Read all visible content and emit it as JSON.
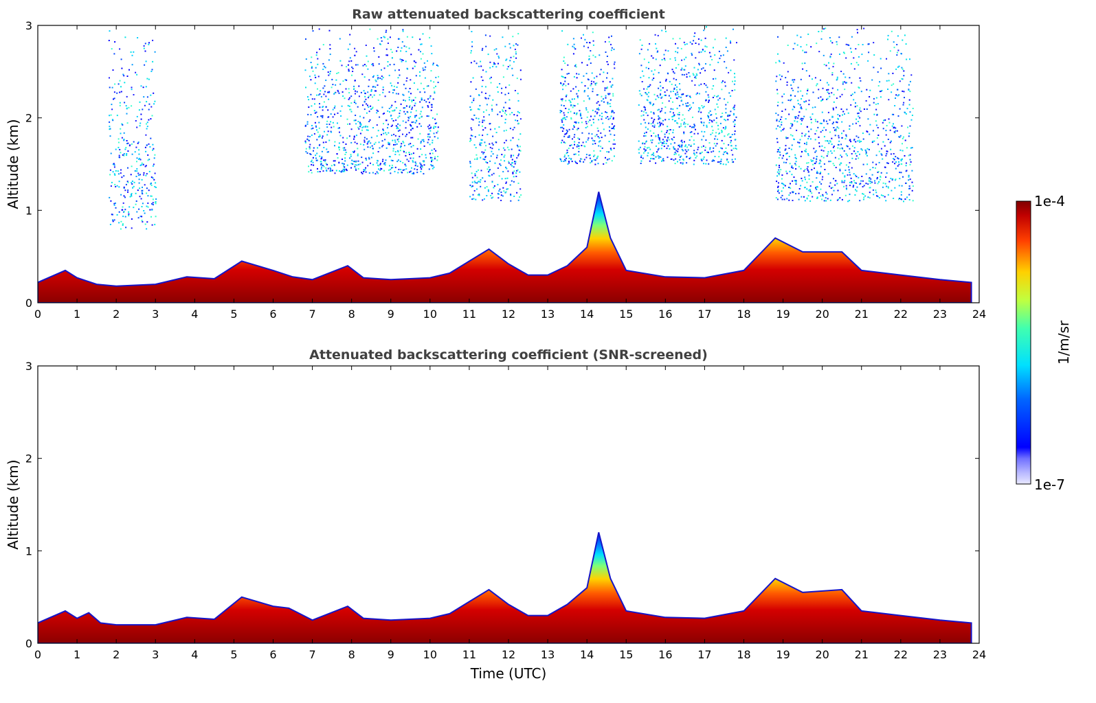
{
  "chart_data": [
    {
      "type": "heatmap",
      "title": "Raw attenuated backscattering coefficient",
      "xlabel": "",
      "ylabel": "Altitude (km)",
      "xlim": [
        0,
        24
      ],
      "ylim": [
        0,
        3
      ],
      "x_ticks": [
        "0",
        "1",
        "2",
        "3",
        "4",
        "5",
        "6",
        "7",
        "8",
        "9",
        "10",
        "11",
        "12",
        "13",
        "14",
        "15",
        "16",
        "17",
        "18",
        "19",
        "20",
        "21",
        "22",
        "23",
        "24"
      ],
      "y_ticks": [
        "0",
        "1",
        "2",
        "3"
      ],
      "data_end_x": 23.8,
      "boundary_layer_top_km": [
        [
          0,
          0.22
        ],
        [
          0.7,
          0.35
        ],
        [
          1,
          0.27
        ],
        [
          1.5,
          0.2
        ],
        [
          2,
          0.18
        ],
        [
          3,
          0.2
        ],
        [
          3.8,
          0.28
        ],
        [
          4.5,
          0.26
        ],
        [
          5.2,
          0.45
        ],
        [
          6,
          0.35
        ],
        [
          6.5,
          0.28
        ],
        [
          7,
          0.25
        ],
        [
          7.9,
          0.4
        ],
        [
          8.3,
          0.27
        ],
        [
          9,
          0.25
        ],
        [
          10,
          0.27
        ],
        [
          10.5,
          0.32
        ],
        [
          11,
          0.45
        ],
        [
          11.5,
          0.58
        ],
        [
          12,
          0.42
        ],
        [
          12.5,
          0.3
        ],
        [
          13,
          0.3
        ],
        [
          13.5,
          0.4
        ],
        [
          14,
          0.6
        ],
        [
          14.3,
          1.2
        ],
        [
          14.6,
          0.7
        ],
        [
          15,
          0.35
        ],
        [
          16,
          0.28
        ],
        [
          17,
          0.27
        ],
        [
          18,
          0.35
        ],
        [
          18.8,
          0.7
        ],
        [
          19.5,
          0.55
        ],
        [
          20.5,
          0.55
        ],
        [
          21,
          0.35
        ],
        [
          22,
          0.3
        ],
        [
          23,
          0.25
        ],
        [
          23.8,
          0.22
        ]
      ],
      "upper_echo_regions": [
        {
          "x_range": [
            1.8,
            3.0
          ],
          "y_range": [
            0.8,
            3.0
          ]
        },
        {
          "x_range": [
            6.8,
            10.2
          ],
          "y_range": [
            1.4,
            3.0
          ]
        },
        {
          "x_range": [
            11.0,
            12.3
          ],
          "y_range": [
            1.1,
            3.0
          ]
        },
        {
          "x_range": [
            13.3,
            14.7
          ],
          "y_range": [
            1.5,
            3.0
          ]
        },
        {
          "x_range": [
            15.3,
            17.8
          ],
          "y_range": [
            1.5,
            3.0
          ]
        },
        {
          "x_range": [
            18.8,
            22.3
          ],
          "y_range": [
            1.1,
            3.0
          ]
        }
      ],
      "colorbar": {
        "min_label": "1e-7",
        "max_label": "1e-4",
        "unit_label": "1/m/sr",
        "colormap": "jet",
        "scale": "log"
      }
    },
    {
      "type": "heatmap",
      "title": "Attenuated backscattering coefficient (SNR-screened)",
      "xlabel": "Time (UTC)",
      "ylabel": "Altitude (km)",
      "xlim": [
        0,
        24
      ],
      "ylim": [
        0,
        3
      ],
      "x_ticks": [
        "0",
        "1",
        "2",
        "3",
        "4",
        "5",
        "6",
        "7",
        "8",
        "9",
        "10",
        "11",
        "12",
        "13",
        "14",
        "15",
        "16",
        "17",
        "18",
        "19",
        "20",
        "21",
        "22",
        "23",
        "24"
      ],
      "y_ticks": [
        "0",
        "1",
        "2",
        "3"
      ],
      "data_end_x": 23.8,
      "boundary_layer_top_km": [
        [
          0,
          0.22
        ],
        [
          0.7,
          0.35
        ],
        [
          1,
          0.27
        ],
        [
          1.3,
          0.33
        ],
        [
          1.6,
          0.22
        ],
        [
          2,
          0.2
        ],
        [
          3,
          0.2
        ],
        [
          3.8,
          0.28
        ],
        [
          4.5,
          0.26
        ],
        [
          5.2,
          0.5
        ],
        [
          6,
          0.4
        ],
        [
          6.4,
          0.38
        ],
        [
          7,
          0.25
        ],
        [
          7.9,
          0.4
        ],
        [
          8.3,
          0.27
        ],
        [
          9,
          0.25
        ],
        [
          10,
          0.27
        ],
        [
          10.5,
          0.32
        ],
        [
          11,
          0.45
        ],
        [
          11.5,
          0.58
        ],
        [
          12,
          0.42
        ],
        [
          12.5,
          0.3
        ],
        [
          13,
          0.3
        ],
        [
          13.5,
          0.42
        ],
        [
          14,
          0.6
        ],
        [
          14.3,
          1.2
        ],
        [
          14.6,
          0.7
        ],
        [
          15,
          0.35
        ],
        [
          16,
          0.28
        ],
        [
          17,
          0.27
        ],
        [
          18,
          0.35
        ],
        [
          18.8,
          0.7
        ],
        [
          19.5,
          0.55
        ],
        [
          20.5,
          0.58
        ],
        [
          21,
          0.35
        ],
        [
          22,
          0.3
        ],
        [
          23,
          0.25
        ],
        [
          23.8,
          0.22
        ]
      ],
      "colorbar": {
        "min_label": "1e-7",
        "max_label": "1e-4",
        "unit_label": "1/m/sr",
        "colormap": "jet",
        "scale": "log"
      }
    }
  ]
}
